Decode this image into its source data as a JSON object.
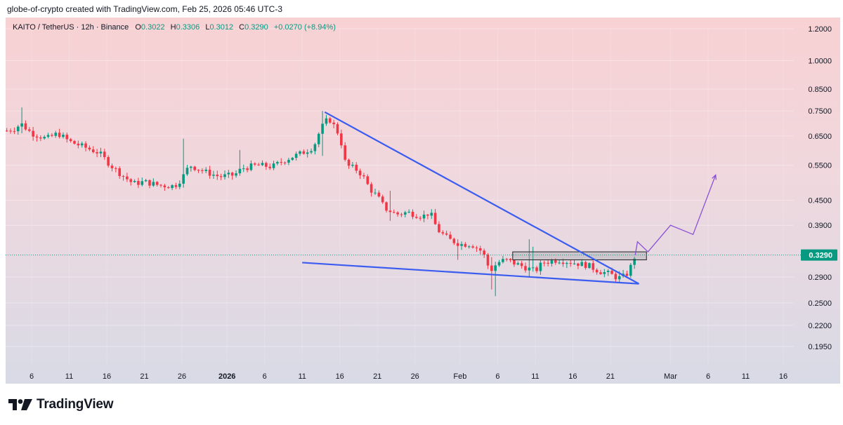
{
  "header": {
    "attribution": "globe-of-crypto created with TradingView.com, Feb 25, 2026 05:46 UTC-3"
  },
  "legend": {
    "symbol": "KAITO / TetherUS · 12h · Binance",
    "open_label": "O",
    "open": "0.3022",
    "high_label": "H",
    "high": "0.3306",
    "low_label": "L",
    "low": "0.3012",
    "close_label": "C",
    "close": "0.3290",
    "change": "+0.0270 (+8.94%)"
  },
  "price_badge": "0.3290",
  "brand": {
    "name": "TradingView"
  },
  "colors": {
    "up": "#089981",
    "down": "#f23645",
    "wedge": "#3a5cf0",
    "projection": "#8a4fd8",
    "badge": "#089981"
  },
  "chart_data": {
    "type": "candlestick",
    "symbol": "KAITO/USDT",
    "interval": "12h",
    "exchange": "Binance",
    "scale": "log",
    "y_ticks": [
      "1.2000",
      "1.0000",
      "0.8500",
      "0.7500",
      "0.6500",
      "0.5500",
      "0.4500",
      "0.3900",
      "0.2900",
      "0.2500",
      "0.2200",
      "0.1950"
    ],
    "x_ticks": [
      {
        "day": 0,
        "label": "6"
      },
      {
        "day": 5,
        "label": "11"
      },
      {
        "day": 10,
        "label": "16"
      },
      {
        "day": 15,
        "label": "21"
      },
      {
        "day": 20,
        "label": "26"
      },
      {
        "day": 26,
        "label": "2026",
        "bold": true
      },
      {
        "day": 31,
        "label": "6"
      },
      {
        "day": 36,
        "label": "11"
      },
      {
        "day": 41,
        "label": "16"
      },
      {
        "day": 46,
        "label": "21"
      },
      {
        "day": 51,
        "label": "26"
      },
      {
        "day": 57,
        "label": "Feb"
      },
      {
        "day": 62,
        "label": "6"
      },
      {
        "day": 67,
        "label": "11"
      },
      {
        "day": 72,
        "label": "16"
      },
      {
        "day": 77,
        "label": "21"
      },
      {
        "day": 85,
        "label": "Mar"
      },
      {
        "day": 90,
        "label": "6"
      },
      {
        "day": 95,
        "label": "11"
      },
      {
        "day": 100,
        "label": "16"
      }
    ],
    "last_price": 0.329,
    "close_path": [
      [
        -3.3,
        0.67
      ],
      [
        -2,
        0.68
      ],
      [
        -1.5,
        0.7
      ],
      [
        0,
        0.66
      ],
      [
        2,
        0.64
      ],
      [
        3.5,
        0.66
      ],
      [
        5,
        0.63
      ],
      [
        7,
        0.61
      ],
      [
        9,
        0.59
      ],
      [
        10.5,
        0.55
      ],
      [
        12,
        0.52
      ],
      [
        13.5,
        0.495
      ],
      [
        15,
        0.5
      ],
      [
        17,
        0.49
      ],
      [
        19,
        0.488
      ],
      [
        20,
        0.51
      ],
      [
        21,
        0.55
      ],
      [
        23,
        0.53
      ],
      [
        25,
        0.515
      ],
      [
        27,
        0.52
      ],
      [
        28,
        0.54
      ],
      [
        30,
        0.55
      ],
      [
        32,
        0.545
      ],
      [
        34,
        0.57
      ],
      [
        36,
        0.59
      ],
      [
        37.5,
        0.61
      ],
      [
        38.5,
        0.68
      ],
      [
        39.5,
        0.72
      ],
      [
        40,
        0.7
      ],
      [
        41,
        0.65
      ],
      [
        41.8,
        0.55
      ],
      [
        43,
        0.54
      ],
      [
        44,
        0.52
      ],
      [
        45,
        0.48
      ],
      [
        46,
        0.46
      ],
      [
        47,
        0.43
      ],
      [
        48.5,
        0.415
      ],
      [
        50,
        0.42
      ],
      [
        52,
        0.41
      ],
      [
        53,
        0.42
      ],
      [
        54,
        0.38
      ],
      [
        55.5,
        0.36
      ],
      [
        57,
        0.35
      ],
      [
        58.5,
        0.35
      ],
      [
        60,
        0.335
      ],
      [
        61,
        0.3
      ],
      [
        62,
        0.315
      ],
      [
        63,
        0.32
      ],
      [
        65,
        0.31
      ],
      [
        67,
        0.3
      ],
      [
        68,
        0.315
      ],
      [
        70,
        0.32
      ],
      [
        72,
        0.315
      ],
      [
        74,
        0.31
      ],
      [
        75.5,
        0.3
      ],
      [
        77,
        0.295
      ],
      [
        78,
        0.288
      ],
      [
        79,
        0.292
      ],
      [
        79.5,
        0.301
      ],
      [
        80.3,
        0.329
      ]
    ],
    "spikes": [
      {
        "day": -1.5,
        "high": 0.765,
        "low": 0.66
      },
      {
        "day": 20,
        "high": 0.64,
        "low": 0.5
      },
      {
        "day": 27.5,
        "high": 0.6,
        "low": 0.52
      },
      {
        "day": 38.5,
        "high": 0.75,
        "low": 0.58
      },
      {
        "day": 47.5,
        "high": 0.475,
        "low": 0.4
      },
      {
        "day": 56.5,
        "high": 0.36,
        "low": 0.32
      },
      {
        "day": 61,
        "high": 0.325,
        "low": 0.27
      },
      {
        "day": 61.5,
        "high": 0.31,
        "low": 0.26
      },
      {
        "day": 66,
        "high": 0.36,
        "low": 0.29
      },
      {
        "day": 66.5,
        "high": 0.345,
        "low": 0.3
      },
      {
        "day": 78,
        "high": 0.3,
        "low": 0.28
      }
    ],
    "wedge_upper": [
      [
        39,
        0.745
      ],
      [
        80.8,
        0.279
      ]
    ],
    "wedge_lower": [
      [
        36,
        0.315
      ],
      [
        80.8,
        0.279
      ]
    ],
    "resistance_box": {
      "x_start": 64,
      "x_end": 81.8,
      "y_low": 0.32,
      "y_high": 0.335
    },
    "projection": [
      [
        80.3,
        0.329
      ],
      [
        80.6,
        0.355
      ],
      [
        82,
        0.335
      ],
      [
        85,
        0.39
      ],
      [
        88,
        0.37
      ],
      [
        91,
        0.52
      ]
    ]
  }
}
